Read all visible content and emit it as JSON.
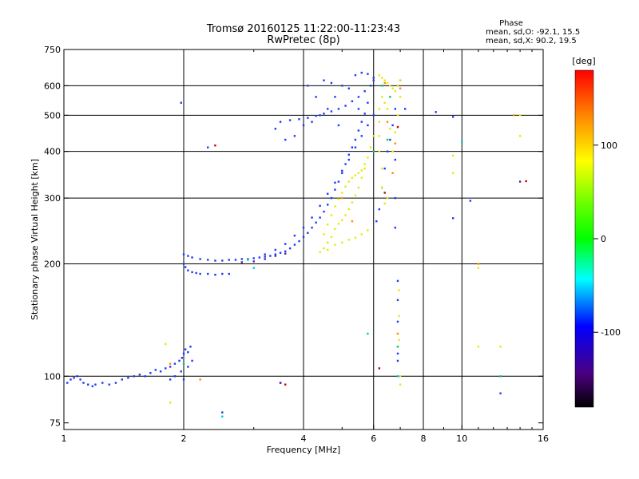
{
  "chart_data": {
    "type": "scatter",
    "title": "Tromsø 20160125 11:22:00-11:23:43",
    "subtitle": "RwPretec (8p)",
    "xlabel": "Frequency [MHz]",
    "ylabel": "Stationary phase Virtual Height [km]",
    "x_scale": "log",
    "y_scale": "log",
    "xlim": [
      1,
      16
    ],
    "ylim": [
      72,
      750
    ],
    "x_ticks": [
      1,
      2,
      4,
      6,
      8,
      10,
      16
    ],
    "y_ticks": [
      75,
      100,
      200,
      300,
      400,
      500,
      600,
      750
    ],
    "x_gridlines": [
      2,
      4,
      6,
      8,
      10
    ],
    "y_gridlines": [
      100,
      200,
      300,
      400,
      500,
      600
    ],
    "phase_info": {
      "label": "Phase",
      "line_o": "mean, sd,O: -92.1, 15.5",
      "line_x": "mean, sd,X:  90.2, 19.5"
    },
    "colorbar": {
      "label": "[deg]",
      "range": [
        -180,
        180
      ],
      "ticks": [
        100,
        0,
        -100
      ],
      "colors_top_to_bottom": [
        "#ff0000",
        "#ff8c00",
        "#ffff00",
        "#00ff00",
        "#00ffff",
        "#0000ff",
        "#4b0082",
        "#000000"
      ]
    },
    "series": [
      {
        "color": "#1a3aff",
        "points": [
          [
            1.02,
            96
          ],
          [
            1.04,
            98
          ],
          [
            1.06,
            99
          ],
          [
            1.08,
            100
          ],
          [
            1.1,
            98
          ],
          [
            1.12,
            96
          ],
          [
            1.15,
            95
          ],
          [
            1.18,
            94
          ],
          [
            1.2,
            95
          ],
          [
            1.25,
            96
          ],
          [
            1.3,
            95
          ],
          [
            1.35,
            96
          ],
          [
            1.4,
            98
          ],
          [
            1.45,
            99
          ],
          [
            1.5,
            100
          ],
          [
            1.55,
            101
          ],
          [
            1.6,
            100
          ],
          [
            1.65,
            102
          ],
          [
            1.7,
            104
          ],
          [
            1.75,
            103
          ],
          [
            1.8,
            105
          ],
          [
            1.85,
            106
          ],
          [
            1.9,
            108
          ],
          [
            1.95,
            110
          ],
          [
            1.98,
            112
          ],
          [
            2.0,
            115
          ],
          [
            2.02,
            118
          ],
          [
            2.05,
            116
          ],
          [
            2.08,
            120
          ],
          [
            2.1,
            110
          ],
          [
            2.05,
            106
          ],
          [
            1.97,
            103
          ],
          [
            1.9,
            100
          ],
          [
            1.85,
            98
          ],
          [
            2.0,
            98
          ],
          [
            2.0,
            200
          ],
          [
            2.02,
            196
          ],
          [
            2.05,
            192
          ],
          [
            2.1,
            190
          ],
          [
            2.15,
            189
          ],
          [
            2.2,
            188
          ],
          [
            2.3,
            188
          ],
          [
            2.4,
            187
          ],
          [
            2.5,
            188
          ],
          [
            2.6,
            188
          ],
          [
            2.0,
            212
          ],
          [
            2.05,
            210
          ],
          [
            2.1,
            208
          ],
          [
            2.2,
            206
          ],
          [
            2.3,
            205
          ],
          [
            2.4,
            204
          ],
          [
            2.5,
            204
          ],
          [
            2.6,
            205
          ],
          [
            2.7,
            205
          ],
          [
            2.8,
            206
          ],
          [
            2.9,
            206
          ],
          [
            3.0,
            207
          ],
          [
            3.1,
            208
          ],
          [
            3.2,
            209
          ],
          [
            3.3,
            210
          ],
          [
            3.4,
            212
          ],
          [
            3.5,
            214
          ],
          [
            3.6,
            216
          ],
          [
            3.7,
            220
          ],
          [
            3.8,
            225
          ],
          [
            3.9,
            230
          ],
          [
            4.0,
            236
          ],
          [
            4.1,
            242
          ],
          [
            4.2,
            250
          ],
          [
            4.3,
            258
          ],
          [
            4.4,
            266
          ],
          [
            4.5,
            276
          ],
          [
            4.6,
            288
          ],
          [
            4.7,
            300
          ],
          [
            4.8,
            316
          ],
          [
            4.9,
            332
          ],
          [
            5.0,
            350
          ],
          [
            5.1,
            370
          ],
          [
            5.2,
            392
          ],
          [
            5.3,
            410
          ],
          [
            5.4,
            430
          ],
          [
            5.5,
            455
          ],
          [
            5.6,
            480
          ],
          [
            5.7,
            505
          ],
          [
            5.8,
            540
          ],
          [
            3.2,
            212
          ],
          [
            3.4,
            218
          ],
          [
            3.6,
            226
          ],
          [
            3.8,
            238
          ],
          [
            4.0,
            250
          ],
          [
            4.2,
            266
          ],
          [
            4.4,
            286
          ],
          [
            4.6,
            308
          ],
          [
            4.8,
            330
          ],
          [
            5.0,
            355
          ],
          [
            5.2,
            380
          ],
          [
            5.4,
            410
          ],
          [
            5.6,
            440
          ],
          [
            5.8,
            470
          ],
          [
            6.0,
            500
          ],
          [
            3.5,
            480
          ],
          [
            3.7,
            485
          ],
          [
            3.9,
            488
          ],
          [
            4.1,
            492
          ],
          [
            4.3,
            498
          ],
          [
            4.5,
            505
          ],
          [
            4.7,
            512
          ],
          [
            4.9,
            520
          ],
          [
            5.1,
            530
          ],
          [
            5.3,
            545
          ],
          [
            5.5,
            560
          ],
          [
            5.7,
            580
          ],
          [
            5.9,
            600
          ],
          [
            6.0,
            620
          ],
          [
            4.0,
            470
          ],
          [
            4.2,
            480
          ],
          [
            4.4,
            500
          ],
          [
            4.6,
            520
          ],
          [
            4.8,
            560
          ],
          [
            5.0,
            600
          ],
          [
            4.5,
            620
          ],
          [
            4.7,
            610
          ],
          [
            5.2,
            590
          ],
          [
            5.4,
            640
          ],
          [
            5.6,
            650
          ],
          [
            5.8,
            645
          ],
          [
            6.0,
            630
          ],
          [
            4.3,
            560
          ],
          [
            3.8,
            440
          ],
          [
            3.6,
            430
          ],
          [
            3.4,
            460
          ],
          [
            4.1,
            600
          ],
          [
            4.9,
            470
          ],
          [
            5.5,
            520
          ],
          [
            6.1,
            260
          ],
          [
            6.2,
            280
          ],
          [
            6.3,
            320
          ],
          [
            6.4,
            360
          ],
          [
            6.5,
            400
          ],
          [
            6.6,
            430
          ],
          [
            6.7,
            470
          ],
          [
            6.8,
            520
          ],
          [
            6.9,
            600
          ],
          [
            7.0,
            620
          ],
          [
            6.8,
            380
          ],
          [
            6.8,
            300
          ],
          [
            6.9,
            180
          ],
          [
            6.9,
            160
          ],
          [
            6.9,
            140
          ],
          [
            6.9,
            115
          ],
          [
            6.9,
            110
          ],
          [
            6.8,
            250
          ],
          [
            1.97,
            540
          ],
          [
            2.3,
            410
          ],
          [
            2.5,
            80
          ],
          [
            3.5,
            96
          ],
          [
            8.6,
            510
          ],
          [
            9.5,
            495
          ],
          [
            10.5,
            295
          ],
          [
            9.5,
            265
          ],
          [
            12.5,
            90
          ],
          [
            7.2,
            520
          ]
        ]
      },
      {
        "color": "#e8e80a",
        "points": [
          [
            4.4,
            215
          ],
          [
            4.5,
            220
          ],
          [
            4.6,
            228
          ],
          [
            4.7,
            236
          ],
          [
            4.8,
            248
          ],
          [
            4.9,
            256
          ],
          [
            5.0,
            262
          ],
          [
            5.1,
            270
          ],
          [
            5.2,
            280
          ],
          [
            5.3,
            292
          ],
          [
            5.4,
            305
          ],
          [
            5.5,
            320
          ],
          [
            5.6,
            340
          ],
          [
            5.7,
            360
          ],
          [
            5.8,
            385
          ],
          [
            5.9,
            410
          ],
          [
            6.0,
            440
          ],
          [
            4.5,
            240
          ],
          [
            4.6,
            255
          ],
          [
            4.7,
            270
          ],
          [
            4.8,
            285
          ],
          [
            4.9,
            298
          ],
          [
            5.0,
            310
          ],
          [
            5.1,
            322
          ],
          [
            5.2,
            332
          ],
          [
            5.3,
            340
          ],
          [
            5.4,
            345
          ],
          [
            5.5,
            350
          ],
          [
            5.6,
            356
          ],
          [
            5.7,
            370
          ],
          [
            4.6,
            218
          ],
          [
            4.8,
            225
          ],
          [
            5.0,
            228
          ],
          [
            5.2,
            232
          ],
          [
            5.4,
            235
          ],
          [
            5.6,
            240
          ],
          [
            5.8,
            246
          ],
          [
            6.2,
            640
          ],
          [
            6.3,
            630
          ],
          [
            6.4,
            620
          ],
          [
            6.5,
            610
          ],
          [
            6.6,
            600
          ],
          [
            6.7,
            590
          ],
          [
            6.8,
            580
          ],
          [
            6.9,
            600
          ],
          [
            7.0,
            620
          ],
          [
            6.3,
            560
          ],
          [
            6.2,
            520
          ],
          [
            6.2,
            480
          ],
          [
            6.2,
            440
          ],
          [
            6.2,
            400
          ],
          [
            6.3,
            360
          ],
          [
            6.3,
            320
          ],
          [
            6.4,
            290
          ],
          [
            6.5,
            300
          ],
          [
            6.7,
            400
          ],
          [
            6.8,
            450
          ],
          [
            6.9,
            500
          ],
          [
            7.0,
            560
          ],
          [
            6.6,
            460
          ],
          [
            6.5,
            520
          ],
          [
            6.4,
            540
          ],
          [
            6.95,
            170
          ],
          [
            6.95,
            145
          ],
          [
            6.95,
            125
          ],
          [
            7.0,
            100
          ],
          [
            7.0,
            95
          ],
          [
            14,
            500
          ],
          [
            14,
            440
          ],
          [
            12.5,
            120
          ],
          [
            11,
            195
          ],
          [
            11,
            120
          ],
          [
            9.5,
            390
          ],
          [
            9.5,
            350
          ],
          [
            1.8,
            122
          ],
          [
            1.85,
            85
          ],
          [
            2.0,
            108
          ]
        ]
      },
      {
        "color": "#ff8c00",
        "points": [
          [
            6.4,
            610
          ],
          [
            6.5,
            480
          ],
          [
            6.7,
            350
          ],
          [
            6.8,
            420
          ],
          [
            7.0,
            590
          ],
          [
            5.0,
            300
          ],
          [
            5.3,
            260
          ],
          [
            6.9,
            130
          ],
          [
            13.5,
            500
          ],
          [
            11,
            200
          ],
          [
            1.85,
            108
          ],
          [
            2.2,
            98
          ]
        ]
      },
      {
        "color": "#cc0000",
        "points": [
          [
            2.4,
            415
          ],
          [
            6.4,
            310
          ],
          [
            6.2,
            105
          ],
          [
            14.5,
            333
          ],
          [
            6.9,
            465
          ],
          [
            3.6,
            95
          ]
        ]
      },
      {
        "color": "#00cc66",
        "points": [
          [
            6.3,
            600
          ],
          [
            6.6,
            560
          ],
          [
            6.5,
            430
          ],
          [
            6.0,
            400
          ],
          [
            2.0,
            108
          ],
          [
            12.5,
            100
          ],
          [
            6.9,
            120
          ]
        ]
      },
      {
        "color": "#00c8c8",
        "points": [
          [
            2.9,
            205
          ],
          [
            2.5,
            78
          ],
          [
            5.8,
            130
          ],
          [
            6.9,
            100
          ],
          [
            3.0,
            195
          ],
          [
            10.0,
            425
          ]
        ]
      },
      {
        "color": "#5a1e9e",
        "points": [
          [
            3.0,
            203
          ],
          [
            3.2,
            206
          ],
          [
            3.4,
            210
          ],
          [
            3.6,
            213
          ],
          [
            2.8,
            202
          ],
          [
            3.5,
            96
          ],
          [
            14.0,
            332
          ]
        ]
      }
    ]
  }
}
